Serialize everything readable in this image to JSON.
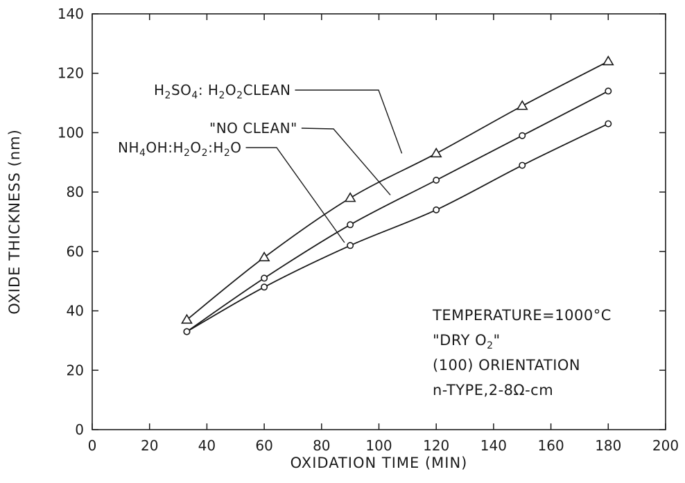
{
  "chart_data": {
    "type": "line",
    "title": "",
    "xlabel": "OXIDATION TIME (MIN)",
    "ylabel": "OXIDE THICKNESS (nm)",
    "xlim": [
      0,
      200
    ],
    "ylim": [
      0,
      140
    ],
    "xticks": [
      0,
      20,
      40,
      60,
      80,
      100,
      120,
      140,
      160,
      180,
      200
    ],
    "yticks": [
      0,
      20,
      40,
      60,
      80,
      100,
      120,
      140
    ],
    "grid": false,
    "legend": "none",
    "series": [
      {
        "name": "H2SO4: H2O2 CLEAN",
        "marker": "triangle",
        "label_parts": [
          [
            "H",
            ""
          ],
          [
            "2",
            "sub"
          ],
          [
            "SO",
            ""
          ],
          [
            "4",
            "sub"
          ],
          [
            ": H",
            ""
          ],
          [
            "2",
            "sub"
          ],
          [
            "O",
            ""
          ],
          [
            "2",
            "sub"
          ],
          [
            "CLEAN",
            ""
          ]
        ],
        "x": [
          33,
          60,
          90,
          120,
          150,
          180
        ],
        "y": [
          37,
          58,
          78,
          93,
          109,
          124
        ]
      },
      {
        "name": "\"NO CLEAN\"",
        "marker": "circle",
        "label_parts": [
          [
            "\"NO CLEAN\"",
            ""
          ]
        ],
        "x": [
          33,
          60,
          90,
          120,
          150,
          180
        ],
        "y": [
          33,
          51,
          69,
          84,
          99,
          114
        ]
      },
      {
        "name": "NH4OH:H2O2:H2O",
        "marker": "circle",
        "label_parts": [
          [
            "NH",
            ""
          ],
          [
            "4",
            "sub"
          ],
          [
            "OH:H",
            ""
          ],
          [
            "2",
            "sub"
          ],
          [
            "O",
            ""
          ],
          [
            "2",
            "sub"
          ],
          [
            ":H",
            ""
          ],
          [
            "2",
            "sub"
          ],
          [
            "O",
            ""
          ]
        ],
        "x": [
          33,
          60,
          90,
          120,
          150,
          180
        ],
        "y": [
          33,
          48,
          62,
          74,
          89,
          103
        ]
      }
    ],
    "annotations": {
      "conditions": [
        [
          [
            "TEMPERATURE=1000°C",
            ""
          ]
        ],
        [
          [
            "\"DRY O",
            ""
          ],
          [
            "2",
            "sub"
          ],
          [
            "\"",
            ""
          ]
        ],
        [
          [
            "(100) ORIENTATION",
            ""
          ]
        ],
        [
          [
            "n-TYPE,2-8Ω-cm",
            ""
          ]
        ]
      ]
    }
  }
}
